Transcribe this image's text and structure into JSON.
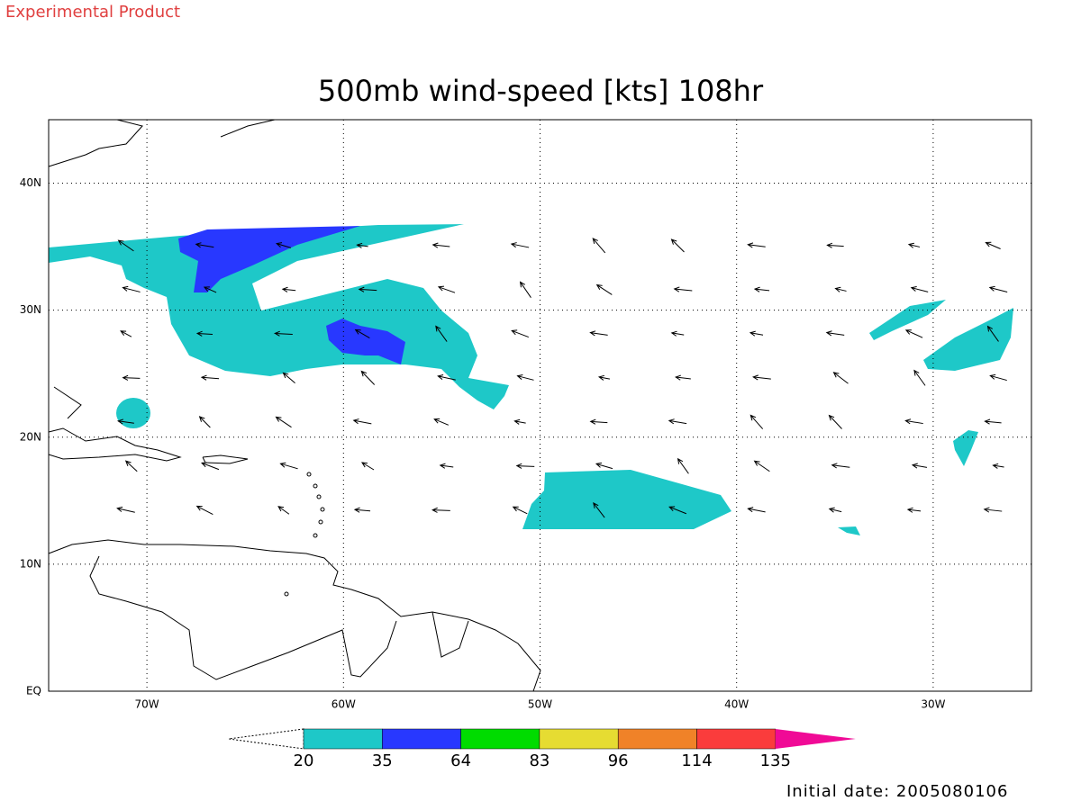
{
  "header": {
    "product": "Experimental Product",
    "title": "500mb wind-speed [kts] 108hr"
  },
  "map": {
    "lon_range": [
      -75,
      -25
    ],
    "lat_range": [
      0,
      45
    ],
    "lon_ticks": [
      {
        "value": -70,
        "label": "70W"
      },
      {
        "value": -60,
        "label": "60W"
      },
      {
        "value": -50,
        "label": "50W"
      },
      {
        "value": -40,
        "label": "40W"
      },
      {
        "value": -30,
        "label": "30W"
      }
    ],
    "lat_ticks": [
      {
        "value": 40,
        "label": "40N"
      },
      {
        "value": 30,
        "label": "30N"
      },
      {
        "value": 20,
        "label": "20N"
      },
      {
        "value": 10,
        "label": "10N"
      },
      {
        "value": 0,
        "label": "EQ"
      }
    ]
  },
  "legend": {
    "levels": [
      20,
      35,
      64,
      83,
      96,
      114,
      135
    ],
    "colors": [
      "#1ec8c8",
      "#2838ff",
      "#00dc00",
      "#e6dc32",
      "#f08228",
      "#fa3c3c",
      "#f00a96"
    ]
  },
  "footer": {
    "initial_date": "Initial date: 2005080106"
  }
}
